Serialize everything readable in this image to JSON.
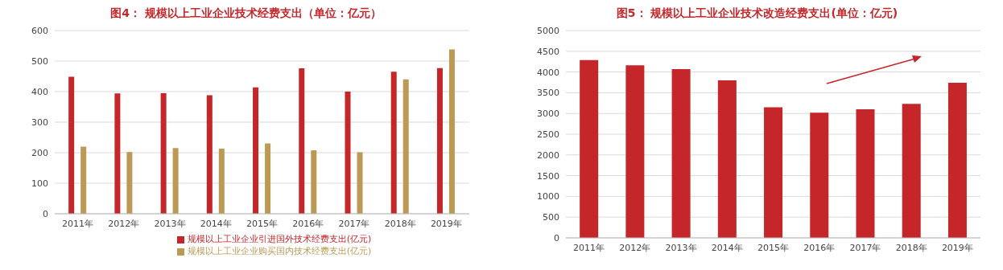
{
  "chart_data": [
    {
      "type": "bar",
      "title": "图4：  规模以上工业企业技术经费支出（单位：亿元）",
      "categories": [
        "2011年",
        "2012年",
        "2013年",
        "2014年",
        "2015年",
        "2016年",
        "2017年",
        "2018年",
        "2019年"
      ],
      "series": [
        {
          "name": "规模以上工业企业引进国外技术经费支出(亿元)",
          "color": "#c4262a",
          "values": [
            449,
            394,
            395,
            388,
            414,
            476,
            400,
            465,
            477
          ]
        },
        {
          "name": "规模以上工业企业购买国内技术经费支出(亿元)",
          "color": "#bc9a56",
          "values": [
            220,
            202,
            215,
            213,
            230,
            208,
            201,
            440,
            538
          ]
        }
      ],
      "ylim": [
        0,
        600
      ],
      "yticks": [
        0,
        100,
        200,
        300,
        400,
        500,
        600
      ],
      "grid": "y",
      "legend": "bottom"
    },
    {
      "type": "bar",
      "title": "图5：  规模以上工业企业技术改造经费支出(单位：亿元)",
      "categories": [
        "2011年",
        "2012年",
        "2013年",
        "2014年",
        "2015年",
        "2016年",
        "2017年",
        "2018年",
        "2019年"
      ],
      "series": [
        {
          "color": "#c4262a",
          "values": [
            4290,
            4160,
            4070,
            3800,
            3150,
            3020,
            3100,
            3230,
            3740
          ]
        }
      ],
      "ylim": [
        0,
        5000
      ],
      "yticks": [
        0,
        500,
        1000,
        1500,
        2000,
        2500,
        3000,
        3500,
        4000,
        4500,
        5000
      ],
      "grid": "y",
      "legend": false
    }
  ]
}
